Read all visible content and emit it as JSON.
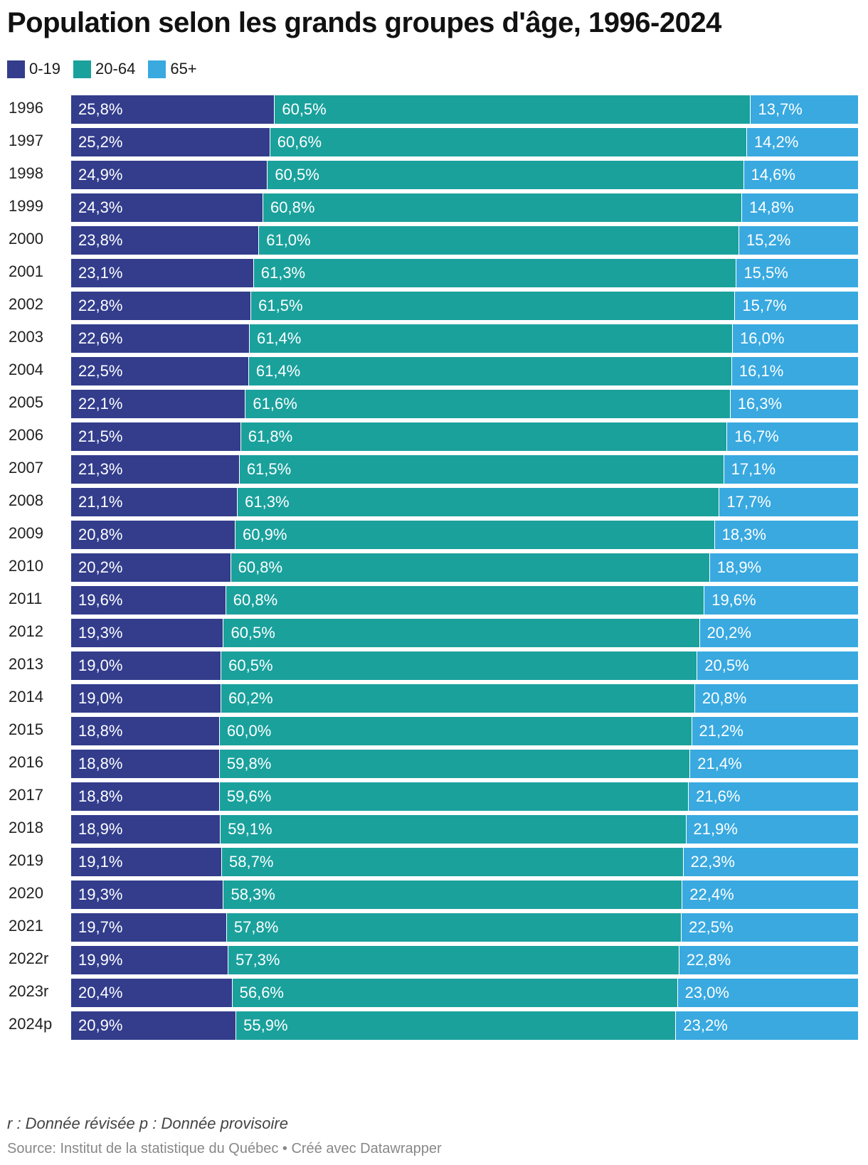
{
  "chart_data": {
    "type": "bar",
    "orientation": "horizontal",
    "stacked": true,
    "title": "Population selon les grands groupes d'âge, 1996-2024",
    "legend_position": "top-left",
    "categories": [
      "1996",
      "1997",
      "1998",
      "1999",
      "2000",
      "2001",
      "2002",
      "2003",
      "2004",
      "2005",
      "2006",
      "2007",
      "2008",
      "2009",
      "2010",
      "2011",
      "2012",
      "2013",
      "2014",
      "2015",
      "2016",
      "2017",
      "2018",
      "2019",
      "2020",
      "2021",
      "2022r",
      "2023r",
      "2024p"
    ],
    "series": [
      {
        "name": "0-19",
        "color": "#333d8c",
        "values": [
          25.8,
          25.2,
          24.9,
          24.3,
          23.8,
          23.1,
          22.8,
          22.6,
          22.5,
          22.1,
          21.5,
          21.3,
          21.1,
          20.8,
          20.2,
          19.6,
          19.3,
          19.0,
          19.0,
          18.8,
          18.8,
          18.8,
          18.9,
          19.1,
          19.3,
          19.7,
          19.9,
          20.4,
          20.9
        ],
        "labels": [
          "25,8%",
          "25,2%",
          "24,9%",
          "24,3%",
          "23,8%",
          "23,1%",
          "22,8%",
          "22,6%",
          "22,5%",
          "22,1%",
          "21,5%",
          "21,3%",
          "21,1%",
          "20,8%",
          "20,2%",
          "19,6%",
          "19,3%",
          "19,0%",
          "19,0%",
          "18,8%",
          "18,8%",
          "18,8%",
          "18,9%",
          "19,1%",
          "19,3%",
          "19,7%",
          "19,9%",
          "20,4%",
          "20,9%"
        ]
      },
      {
        "name": "20-64",
        "color": "#1aa19c",
        "values": [
          60.5,
          60.6,
          60.5,
          60.8,
          61.0,
          61.3,
          61.5,
          61.4,
          61.4,
          61.6,
          61.8,
          61.5,
          61.3,
          60.9,
          60.8,
          60.8,
          60.5,
          60.5,
          60.2,
          60.0,
          59.8,
          59.6,
          59.1,
          58.7,
          58.3,
          57.8,
          57.3,
          56.6,
          55.9
        ],
        "labels": [
          "60,5%",
          "60,6%",
          "60,5%",
          "60,8%",
          "61,0%",
          "61,3%",
          "61,5%",
          "61,4%",
          "61,4%",
          "61,6%",
          "61,8%",
          "61,5%",
          "61,3%",
          "60,9%",
          "60,8%",
          "60,8%",
          "60,5%",
          "60,5%",
          "60,2%",
          "60,0%",
          "59,8%",
          "59,6%",
          "59,1%",
          "58,7%",
          "58,3%",
          "57,8%",
          "57,3%",
          "56,6%",
          "55,9%"
        ]
      },
      {
        "name": "65+",
        "color": "#39a9e0",
        "values": [
          13.7,
          14.2,
          14.6,
          14.8,
          15.2,
          15.5,
          15.7,
          16.0,
          16.1,
          16.3,
          16.7,
          17.1,
          17.7,
          18.3,
          18.9,
          19.6,
          20.2,
          20.5,
          20.8,
          21.2,
          21.4,
          21.6,
          21.9,
          22.3,
          22.4,
          22.5,
          22.8,
          23.0,
          23.2
        ],
        "labels": [
          "13,7%",
          "14,2%",
          "14,6%",
          "14,8%",
          "15,2%",
          "15,5%",
          "15,7%",
          "16,0%",
          "16,1%",
          "16,3%",
          "16,7%",
          "17,1%",
          "17,7%",
          "18,3%",
          "18,9%",
          "19,6%",
          "20,2%",
          "20,5%",
          "20,8%",
          "21,2%",
          "21,4%",
          "21,6%",
          "21,9%",
          "22,3%",
          "22,4%",
          "22,5%",
          "22,8%",
          "23,0%",
          "23,2%"
        ]
      }
    ]
  },
  "notes": "r : Donnée révisée p : Donnée provisoire",
  "source": "Source: Institut de la statistique du Québec • Créé avec Datawrapper"
}
